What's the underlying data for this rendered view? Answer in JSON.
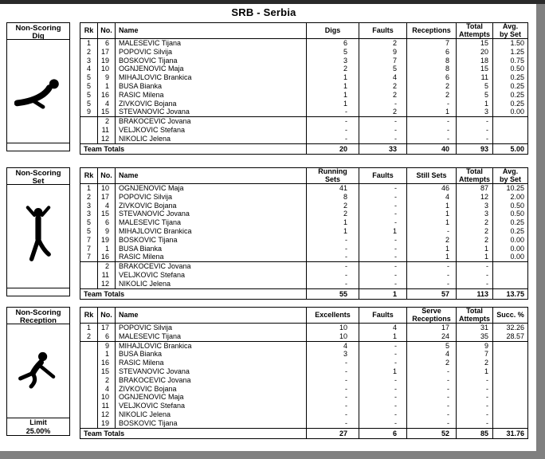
{
  "page": {
    "title": "SRB - Serbia"
  },
  "tables": [
    {
      "label_line1": "Non-Scoring",
      "label_line2": "Dig",
      "limit_label": "",
      "limit_value": "",
      "headers": [
        [
          "Rk"
        ],
        [
          "No."
        ],
        [
          "Name"
        ],
        [
          "Digs"
        ],
        [
          "Faults"
        ],
        [
          "Receptions"
        ],
        [
          "Total",
          "Attempts"
        ],
        [
          "Avg.",
          "by Set"
        ]
      ],
      "rows": [
        [
          "1",
          "6",
          "MALESEVIC Tijana",
          "6",
          "2",
          "7",
          "15",
          "1.50"
        ],
        [
          "2",
          "17",
          "POPOVIC Silvija",
          "5",
          "9",
          "6",
          "20",
          "1.25"
        ],
        [
          "3",
          "19",
          "BOSKOVIC Tijana",
          "3",
          "7",
          "8",
          "18",
          "0.75"
        ],
        [
          "4",
          "10",
          "OGNJENOVIC Maja",
          "2",
          "5",
          "8",
          "15",
          "0.50"
        ],
        [
          "5",
          "9",
          "MIHAJLOVIC Brankica",
          "1",
          "4",
          "6",
          "11",
          "0.25"
        ],
        [
          "5",
          "1",
          "BUSA Bianka",
          "1",
          "2",
          "2",
          "5",
          "0.25"
        ],
        [
          "5",
          "16",
          "RASIC Milena",
          "1",
          "2",
          "2",
          "5",
          "0.25"
        ],
        [
          "5",
          "4",
          "ZIVKOVIC Bojana",
          "1",
          "-",
          "-",
          "1",
          "0.25"
        ],
        [
          "9",
          "15",
          "STEVANOVIC Jovana",
          "-",
          "2",
          "1",
          "3",
          "0.00"
        ],
        [
          "",
          "2",
          "BRAKOCEVIC Jovana",
          "-",
          "-",
          "-",
          "-",
          ""
        ],
        [
          "",
          "11",
          "VELJKOVIC Stefana",
          "-",
          "-",
          "-",
          "-",
          ""
        ],
        [
          "",
          "12",
          "NIKOLIC Jelena",
          "-",
          "-",
          "-",
          "-",
          ""
        ]
      ],
      "group_start_rows": [
        9
      ],
      "totals_label": "Team Totals",
      "totals": [
        "20",
        "33",
        "40",
        "93",
        "5.00"
      ]
    },
    {
      "label_line1": "Non-Scoring",
      "label_line2": "Set",
      "limit_label": "",
      "limit_value": "",
      "headers": [
        [
          "Rk"
        ],
        [
          "No."
        ],
        [
          "Name"
        ],
        [
          "Running",
          "Sets"
        ],
        [
          "Faults"
        ],
        [
          "Still Sets"
        ],
        [
          "Total",
          "Attempts"
        ],
        [
          "Avg.",
          "by Set"
        ]
      ],
      "rows": [
        [
          "1",
          "10",
          "OGNJENOVIC Maja",
          "41",
          "-",
          "46",
          "87",
          "10.25"
        ],
        [
          "2",
          "17",
          "POPOVIC Silvija",
          "8",
          "-",
          "4",
          "12",
          "2.00"
        ],
        [
          "3",
          "4",
          "ZIVKOVIC Bojana",
          "2",
          "-",
          "1",
          "3",
          "0.50"
        ],
        [
          "3",
          "15",
          "STEVANOVIC Jovana",
          "2",
          "-",
          "1",
          "3",
          "0.50"
        ],
        [
          "5",
          "6",
          "MALESEVIC Tijana",
          "1",
          "-",
          "1",
          "2",
          "0.25"
        ],
        [
          "5",
          "9",
          "MIHAJLOVIC Brankica",
          "1",
          "1",
          "-",
          "2",
          "0.25"
        ],
        [
          "7",
          "19",
          "BOSKOVIC Tijana",
          "-",
          "-",
          "2",
          "2",
          "0.00"
        ],
        [
          "7",
          "1",
          "BUSA Bianka",
          "-",
          "-",
          "1",
          "1",
          "0.00"
        ],
        [
          "7",
          "16",
          "RASIC Milena",
          "-",
          "-",
          "1",
          "1",
          "0.00"
        ],
        [
          "",
          "2",
          "BRAKOCEVIC Jovana",
          "-",
          "-",
          "-",
          "-",
          ""
        ],
        [
          "",
          "11",
          "VELJKOVIC Stefana",
          "-",
          "-",
          "-",
          "-",
          ""
        ],
        [
          "",
          "12",
          "NIKOLIC Jelena",
          "-",
          "-",
          "-",
          "-",
          ""
        ]
      ],
      "group_start_rows": [
        9
      ],
      "totals_label": "Team Totals",
      "totals": [
        "55",
        "1",
        "57",
        "113",
        "13.75"
      ]
    },
    {
      "label_line1": "Non-Scoring",
      "label_line2": "Reception",
      "limit_label": "Limit",
      "limit_value": "25.00%",
      "headers": [
        [
          "Rk"
        ],
        [
          "No."
        ],
        [
          "Name"
        ],
        [
          "Excellents"
        ],
        [
          "Faults"
        ],
        [
          "Serve",
          "Receptions"
        ],
        [
          "Total",
          "Attempts"
        ],
        [
          "Succ. %"
        ]
      ],
      "rows": [
        [
          "1",
          "17",
          "POPOVIC Silvija",
          "10",
          "4",
          "17",
          "31",
          "32.26"
        ],
        [
          "2",
          "6",
          "MALESEVIC Tijana",
          "10",
          "1",
          "24",
          "35",
          "28.57"
        ],
        [
          "",
          "9",
          "MIHAJLOVIC Brankica",
          "4",
          "-",
          "5",
          "9",
          ""
        ],
        [
          "",
          "1",
          "BUSA Bianka",
          "3",
          "-",
          "4",
          "7",
          ""
        ],
        [
          "",
          "16",
          "RASIC Milena",
          "-",
          "-",
          "2",
          "2",
          ""
        ],
        [
          "",
          "15",
          "STEVANOVIC Jovana",
          "-",
          "1",
          "-",
          "1",
          ""
        ],
        [
          "",
          "2",
          "BRAKOCEVIC Jovana",
          "-",
          "-",
          "-",
          "-",
          ""
        ],
        [
          "",
          "4",
          "ZIVKOVIC Bojana",
          "-",
          "-",
          "-",
          "-",
          ""
        ],
        [
          "",
          "10",
          "OGNJENOVIC Maja",
          "-",
          "-",
          "-",
          "-",
          ""
        ],
        [
          "",
          "11",
          "VELJKOVIC Stefana",
          "-",
          "-",
          "-",
          "-",
          ""
        ],
        [
          "",
          "12",
          "NIKOLIC Jelena",
          "-",
          "-",
          "-",
          "-",
          ""
        ],
        [
          "",
          "19",
          "BOSKOVIC Tijana",
          "-",
          "-",
          "-",
          "-",
          ""
        ]
      ],
      "group_start_rows": [
        2
      ],
      "totals_label": "Team Totals",
      "totals": [
        "27",
        "6",
        "52",
        "85",
        "31.76"
      ]
    }
  ]
}
